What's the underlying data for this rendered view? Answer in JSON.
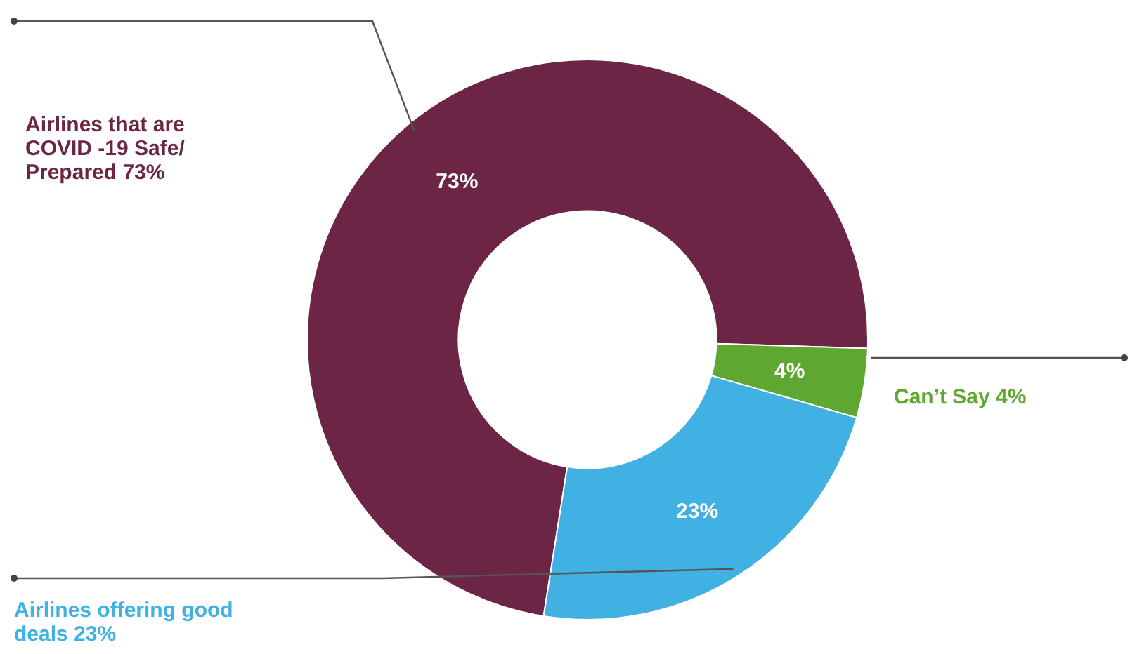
{
  "chart_data": {
    "type": "donut",
    "categories": [
      "Airlines that are COVID -19 Safe/ Prepared 73%",
      "Can’t Say 4%",
      "Airlines offering good deals 23%"
    ],
    "values": [
      73,
      4,
      23
    ],
    "value_labels": [
      "73%",
      "4%",
      "23%"
    ],
    "colors": [
      "#6c2545",
      "#5ea832",
      "#40b1e2"
    ],
    "legend": false
  }
}
